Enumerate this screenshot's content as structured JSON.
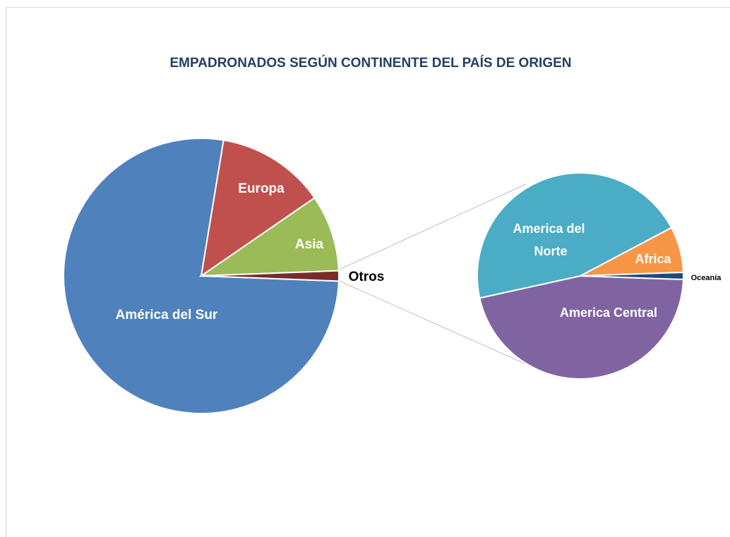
{
  "chart_data": [
    {
      "type": "pie",
      "title": "EMPADRONADOS SEGÚN CONTINENTE DEL PAÍS DE ORIGEN",
      "categories": [
        "América del Sur",
        "Europa",
        "Asia",
        "Otros"
      ],
      "values": [
        77,
        12.8,
        9,
        1.2
      ],
      "colors": [
        "#4f81bd",
        "#c0504d",
        "#9bbb59",
        "#772c2a"
      ]
    },
    {
      "type": "pie",
      "categories": [
        "America Central",
        "America del Norte",
        "Africa",
        "Oceanía"
      ],
      "values": [
        46,
        45.7,
        7.2,
        1.1
      ],
      "colors": [
        "#8064a2",
        "#4bacc6",
        "#f79646",
        "#1f497d"
      ]
    }
  ]
}
